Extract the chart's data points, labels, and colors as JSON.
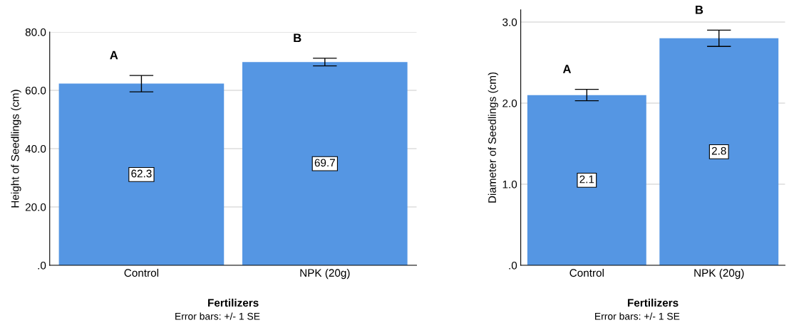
{
  "chart_data": [
    {
      "type": "bar",
      "categories": [
        "Control",
        "NPK (20g)"
      ],
      "values": [
        62.3,
        69.7
      ],
      "errors": [
        2.8,
        1.3
      ],
      "color": "#5596e3",
      "data_labels": true,
      "xlabel": "Fertilizers",
      "ylabel": "Height of Seedlings (cm)",
      "ylim": [
        0,
        80
      ],
      "yticks": [
        {
          "value": 0,
          "label": ".0"
        },
        {
          "value": 20,
          "label": "20.0"
        },
        {
          "value": 40,
          "label": "40.0"
        },
        {
          "value": 60,
          "label": "60.0"
        },
        {
          "value": 80,
          "label": "80.0"
        }
      ],
      "grid": "y",
      "legend": false,
      "annotations": [
        "A",
        "B",
        "Error bars: +/- 1 SE"
      ]
    },
    {
      "type": "bar",
      "categories": [
        "Control",
        "NPK (20g)"
      ],
      "values": [
        2.1,
        2.8
      ],
      "errors": [
        0.07,
        0.1
      ],
      "color": "#5596e3",
      "data_labels": true,
      "xlabel": "Fertilizers",
      "ylabel": "Diameter of Seedlings (cm)",
      "ylim": [
        0,
        3.15
      ],
      "yticks": [
        {
          "value": 0,
          "label": ".0"
        },
        {
          "value": 1,
          "label": "1.0"
        },
        {
          "value": 2,
          "label": "2.0"
        },
        {
          "value": 3,
          "label": "3.0"
        }
      ],
      "grid": "y",
      "legend": false,
      "annotations": [
        "A",
        "B",
        "Error bars: +/- 1 SE"
      ]
    }
  ]
}
